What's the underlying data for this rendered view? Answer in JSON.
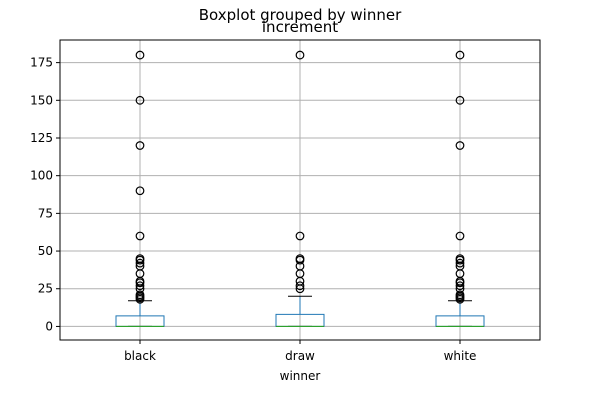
{
  "chart_data": {
    "type": "boxplot",
    "suptitle": "Boxplot grouped by winner",
    "title": "increment",
    "xlabel": "winner",
    "ylabel": "",
    "categories": [
      "black",
      "draw",
      "white"
    ],
    "ylim": [
      -9,
      190
    ],
    "yticks": [
      0,
      25,
      50,
      75,
      100,
      125,
      150,
      175
    ],
    "grid": true,
    "boxes": [
      {
        "category": "black",
        "min": 0,
        "q1": 0,
        "median": 0,
        "q3": 7,
        "whisker_high": 17,
        "outliers": [
          18,
          19,
          20,
          21,
          25,
          27,
          29,
          30,
          35,
          40,
          42,
          44,
          45,
          60,
          90,
          120,
          150,
          180
        ]
      },
      {
        "category": "draw",
        "min": 0,
        "q1": 0,
        "median": 0,
        "q3": 8,
        "whisker_high": 20,
        "outliers": [
          25,
          27,
          30,
          35,
          40,
          44,
          45,
          60,
          180
        ]
      },
      {
        "category": "white",
        "min": 0,
        "q1": 0,
        "median": 0,
        "q3": 7,
        "whisker_high": 17,
        "outliers": [
          18,
          19,
          20,
          21,
          25,
          27,
          29,
          30,
          35,
          40,
          42,
          44,
          45,
          60,
          120,
          150,
          180
        ]
      }
    ],
    "colors": {
      "box": "#1f77b4",
      "median": "#2ca02c",
      "whisker": "#000000",
      "grid": "#b0b0b0",
      "outlier": "#000000"
    }
  }
}
